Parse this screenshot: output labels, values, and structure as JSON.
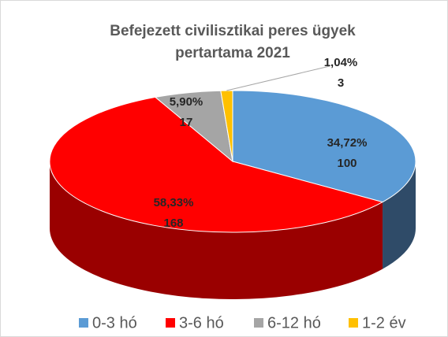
{
  "chart_data": {
    "type": "pie3d",
    "title": [
      "Befejezett civilisztikai peres ügyek",
      "pertartama 2021"
    ],
    "categories": [
      "0-3 hó",
      "3-6 hó",
      "6-12 hó",
      "1-2 év"
    ],
    "values": [
      100,
      168,
      17,
      3
    ],
    "percent_labels": [
      "34,72%",
      "58,33%",
      "5,90%",
      "1,04%"
    ],
    "colors": [
      "#5b9bd5",
      "#ff0000",
      "#a5a5a5",
      "#ffc000"
    ],
    "side_colors": [
      "#2f4b68",
      "#9a0000",
      "#6e6e6e",
      "#b88a00"
    ],
    "legend": "bottom"
  }
}
